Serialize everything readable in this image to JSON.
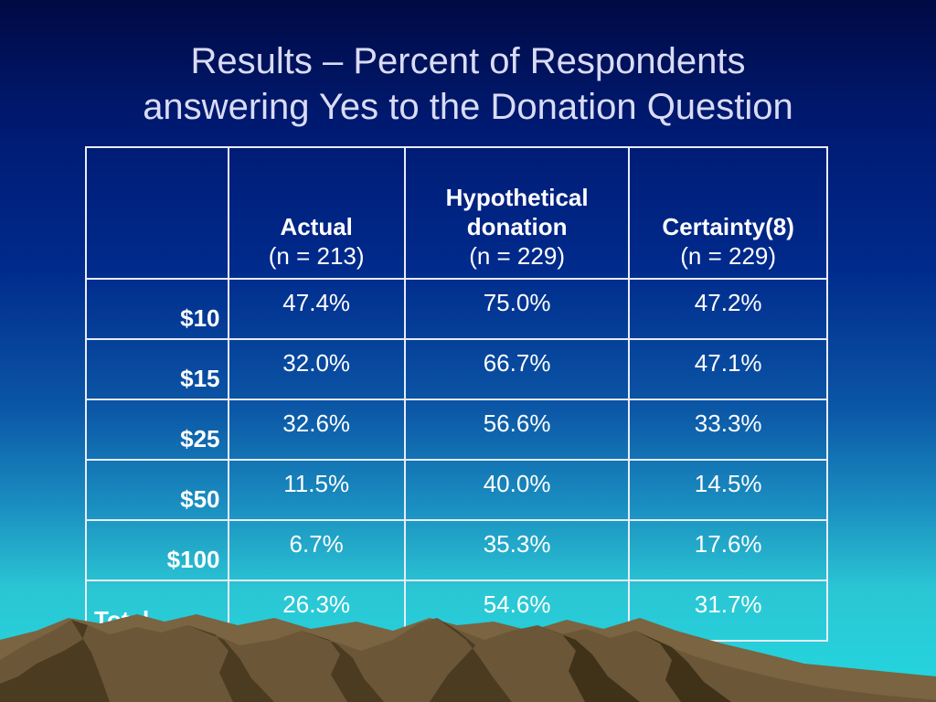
{
  "slide": {
    "title_line1": "Results – Percent of Respondents",
    "title_line2": "answering Yes to the Donation Question"
  },
  "table": {
    "columns": [
      {
        "bold": "",
        "sub": ""
      },
      {
        "bold": "Actual",
        "sub": "(n = 213)"
      },
      {
        "bold": "Hypothetical donation",
        "sub": "(n = 229)"
      },
      {
        "bold": "Certainty(8)",
        "sub": "(n = 229)"
      }
    ],
    "rows": [
      {
        "label": "$10",
        "values": [
          "47.4%",
          "75.0%",
          "47.2%"
        ]
      },
      {
        "label": "$15",
        "values": [
          "32.0%",
          "66.7%",
          "47.1%"
        ]
      },
      {
        "label": "$25",
        "values": [
          "32.6%",
          "56.6%",
          "33.3%"
        ]
      },
      {
        "label": "$50",
        "values": [
          "11.5%",
          "40.0%",
          "14.5%"
        ]
      },
      {
        "label": "$100",
        "values": [
          "6.7%",
          "35.3%",
          "17.6%"
        ]
      },
      {
        "label": "Total",
        "values": [
          "26.3%",
          "54.6%",
          "31.7%"
        ]
      }
    ]
  },
  "colors": {
    "title_text": "#d9dcf5",
    "table_border": "#e8ecf6",
    "mountain_brown": "#6b5638",
    "mountain_shadow": "#3f3219"
  }
}
